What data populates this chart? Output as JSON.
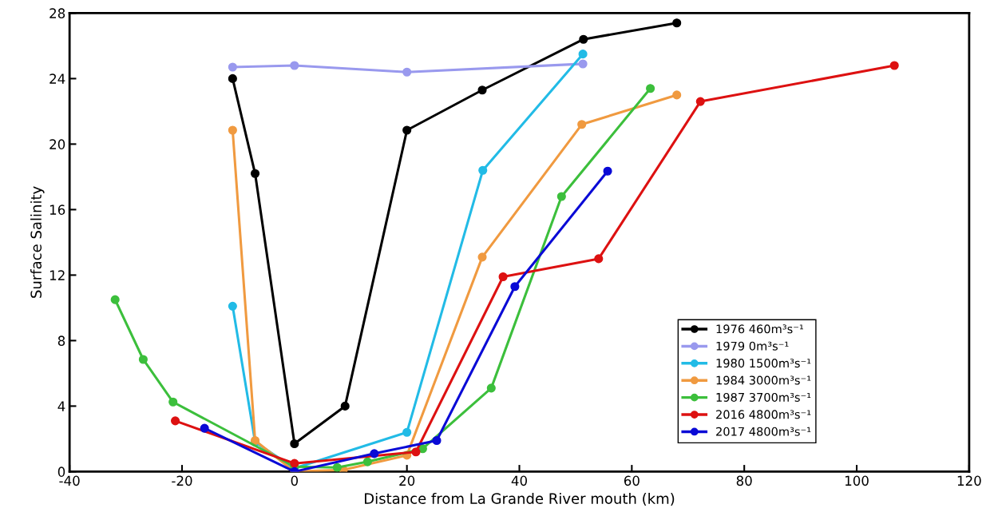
{
  "chart_data": {
    "type": "line",
    "xlabel": "Distance from La Grande River mouth (km)",
    "ylabel": "Surface Salinity",
    "xlim": [
      -40,
      120
    ],
    "xticks": [
      -40,
      -20,
      0,
      20,
      40,
      60,
      80,
      100,
      120
    ],
    "ylim": [
      0,
      28
    ],
    "yticks": [
      0,
      4,
      8,
      12,
      16,
      20,
      24,
      28
    ],
    "grid": false,
    "legend": "bottom right",
    "marker": "circle",
    "line_style": "solid",
    "series": [
      {
        "name": "1976 460m³s⁻¹",
        "color": "#000000",
        "x": [
          -11,
          -7,
          0,
          9,
          20,
          33.4,
          51.4,
          68
        ],
        "values": [
          24.0,
          18.2,
          1.7,
          4.0,
          20.85,
          23.3,
          26.4,
          27.4
        ]
      },
      {
        "name": "1979 0m³s⁻¹",
        "color": "#9999ee",
        "x": [
          -11,
          0,
          20,
          51.3
        ],
        "values": [
          24.7,
          24.8,
          24.4,
          24.9
        ]
      },
      {
        "name": "1980 1500m³s⁻¹",
        "color": "#22bbe6",
        "x": [
          -11,
          -7,
          0,
          20,
          33.5,
          51.3
        ],
        "values": [
          10.1,
          1.8,
          0.2,
          2.4,
          18.4,
          25.5
        ]
      },
      {
        "name": "1984 3000m³s⁻¹",
        "color": "#f09a40",
        "x": [
          -11,
          -7,
          0,
          8.7,
          20,
          33.4,
          51.1,
          68
        ],
        "values": [
          20.85,
          1.9,
          0,
          0.1,
          1.0,
          13.1,
          21.2,
          23.0
        ]
      },
      {
        "name": "1987 3700m³s⁻¹",
        "color": "#3cbf3c",
        "x": [
          -31.9,
          -26.9,
          -21.6,
          0,
          7.6,
          13,
          22.8,
          35,
          47.5,
          63.3
        ],
        "values": [
          10.5,
          6.85,
          4.25,
          0.3,
          0.25,
          0.6,
          1.4,
          5.1,
          16.8,
          23.4
        ]
      },
      {
        "name": "2016 4800m³s⁻¹",
        "color": "#dd1111",
        "x": [
          -21.2,
          0,
          21.6,
          37.1,
          54.1,
          72.2,
          106.7
        ],
        "values": [
          3.1,
          0.5,
          1.2,
          11.9,
          13.0,
          22.6,
          24.8
        ]
      },
      {
        "name": "2017 4800m³s⁻¹",
        "color": "#0a0ad6",
        "x": [
          -16,
          0,
          14.2,
          25.3,
          39.2,
          55.7
        ],
        "values": [
          2.65,
          0,
          1.1,
          1.9,
          11.3,
          18.35
        ]
      }
    ]
  }
}
